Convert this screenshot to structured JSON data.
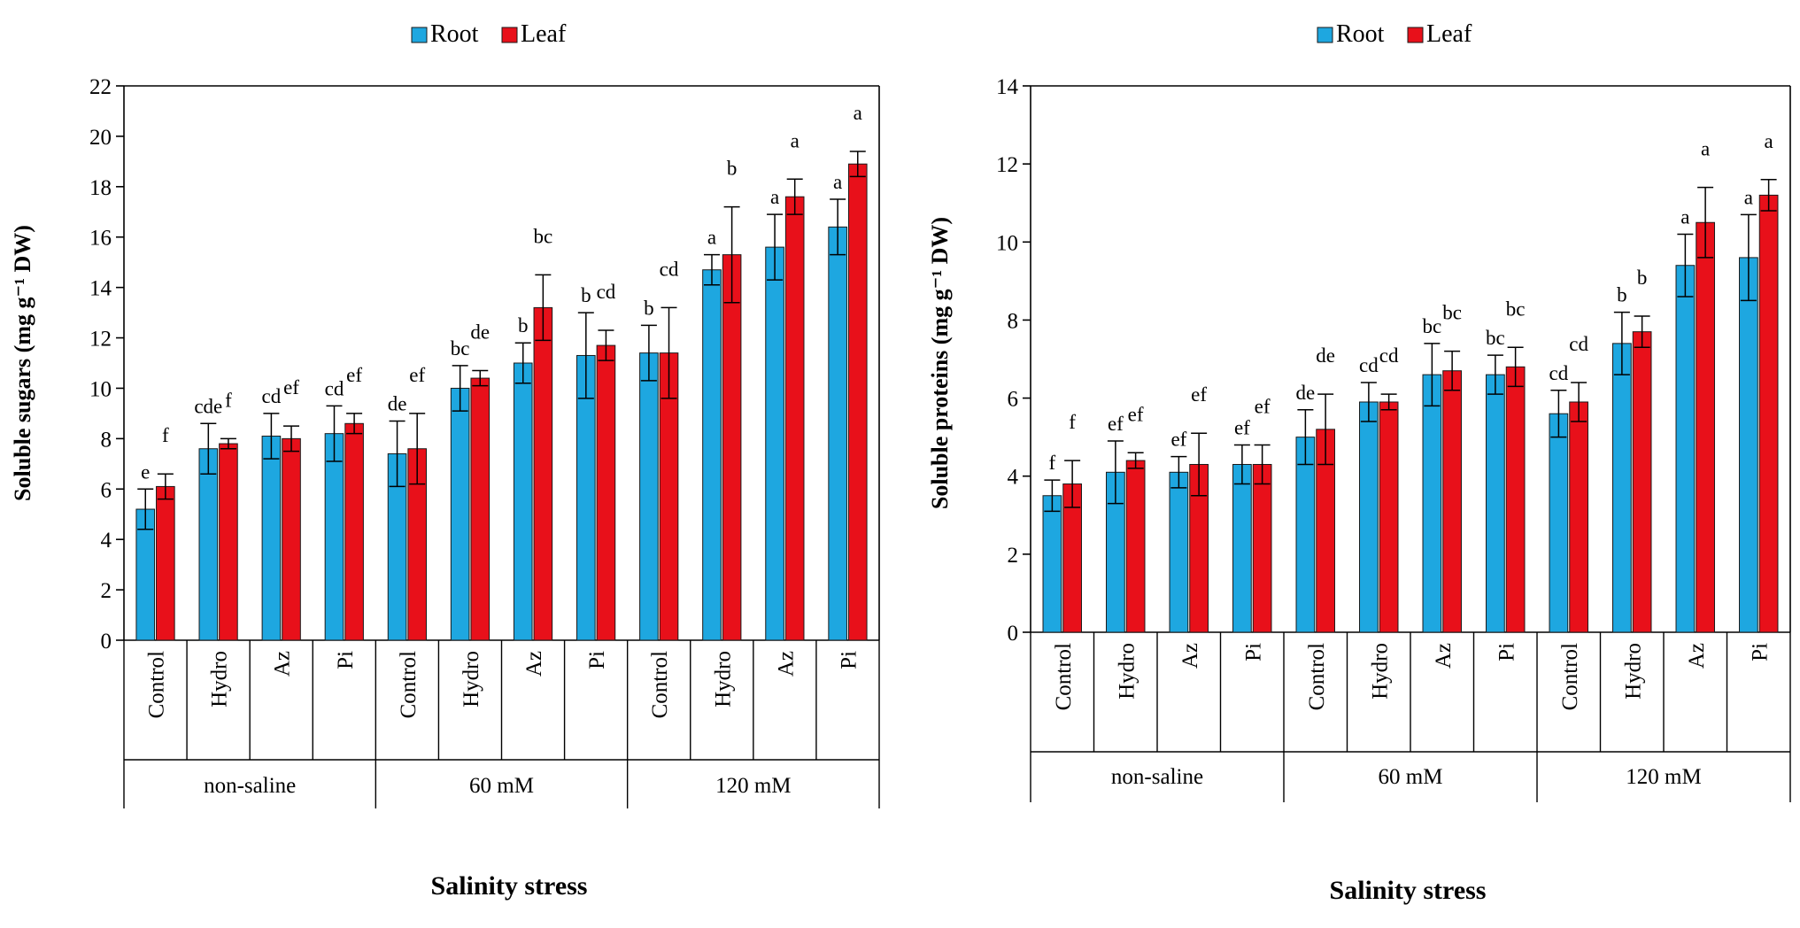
{
  "colors": {
    "root": "#1ea7e0",
    "leaf": "#e8101a",
    "axis": "#000000"
  },
  "chart_data": [
    {
      "type": "bar",
      "ylabel": "Soluble sugars (mg g⁻¹ DW)",
      "xlabel": "Salinity stress",
      "ylim": [
        0,
        22
      ],
      "yticks": [
        0,
        2,
        4,
        6,
        8,
        10,
        12,
        14,
        16,
        18,
        20,
        22
      ],
      "groups": [
        "non-saline",
        "60 mM",
        "120 mM"
      ],
      "categories": [
        "Control",
        "Hydro",
        "Az",
        "Pi",
        "Control",
        "Hydro",
        "Az",
        "Pi",
        "Control",
        "Hydro",
        "Az",
        "Pi"
      ],
      "legend_position": "top-center",
      "grid": false,
      "series": [
        {
          "name": "Root",
          "values": [
            5.2,
            7.6,
            8.1,
            8.2,
            7.4,
            10.0,
            11.0,
            11.3,
            11.4,
            14.7,
            15.6,
            16.4
          ],
          "errors": [
            0.8,
            1.0,
            0.9,
            1.1,
            1.3,
            0.9,
            0.8,
            1.7,
            1.1,
            0.6,
            1.3,
            1.1
          ],
          "labels": [
            "e",
            "cde",
            "cd",
            "cd",
            "de",
            "bc",
            "b",
            "b",
            "b",
            "a",
            "a",
            "a"
          ]
        },
        {
          "name": "Leaf",
          "values": [
            6.1,
            7.8,
            8.0,
            8.6,
            7.6,
            10.4,
            13.2,
            11.7,
            11.4,
            15.3,
            17.6,
            18.9
          ],
          "errors": [
            0.5,
            0.2,
            0.5,
            0.4,
            1.4,
            0.3,
            1.3,
            0.6,
            1.8,
            1.9,
            0.7,
            0.5
          ],
          "labels": [
            "f",
            "f",
            "ef",
            "ef",
            "ef",
            "de",
            "bc",
            "cd",
            "cd",
            "b",
            "a",
            "a"
          ]
        }
      ]
    },
    {
      "type": "bar",
      "ylabel": "Soluble proteins (mg g⁻¹ DW)",
      "xlabel": "Salinity stress",
      "ylim": [
        0,
        14
      ],
      "yticks": [
        0,
        2,
        4,
        6,
        8,
        10,
        12,
        14
      ],
      "groups": [
        "non-saline",
        "60 mM",
        "120 mM"
      ],
      "categories": [
        "Control",
        "Hydro",
        "Az",
        "Pi",
        "Control",
        "Hydro",
        "Az",
        "Pi",
        "Control",
        "Hydro",
        "Az",
        "Pi"
      ],
      "legend_position": "top-center",
      "grid": false,
      "series": [
        {
          "name": "Root",
          "values": [
            3.5,
            4.1,
            4.1,
            4.3,
            5.0,
            5.9,
            6.6,
            6.6,
            5.6,
            7.4,
            9.4,
            9.6
          ],
          "errors": [
            0.4,
            0.8,
            0.4,
            0.5,
            0.7,
            0.5,
            0.8,
            0.5,
            0.6,
            0.8,
            0.8,
            1.1
          ],
          "labels": [
            "f",
            "ef",
            "ef",
            "ef",
            "de",
            "cd",
            "bc",
            "bc",
            "cd",
            "b",
            "a",
            "a"
          ]
        },
        {
          "name": "Leaf",
          "values": [
            3.8,
            4.4,
            4.3,
            4.3,
            5.2,
            5.9,
            6.7,
            6.8,
            5.9,
            7.7,
            10.5,
            11.2
          ],
          "errors": [
            0.6,
            0.2,
            0.8,
            0.5,
            0.9,
            0.2,
            0.5,
            0.5,
            0.5,
            0.4,
            0.9,
            0.4
          ],
          "labels": [
            "f",
            "ef",
            "ef",
            "ef",
            "de",
            "cd",
            "bc",
            "bc",
            "cd",
            "b",
            "a",
            "a"
          ]
        }
      ]
    }
  ]
}
